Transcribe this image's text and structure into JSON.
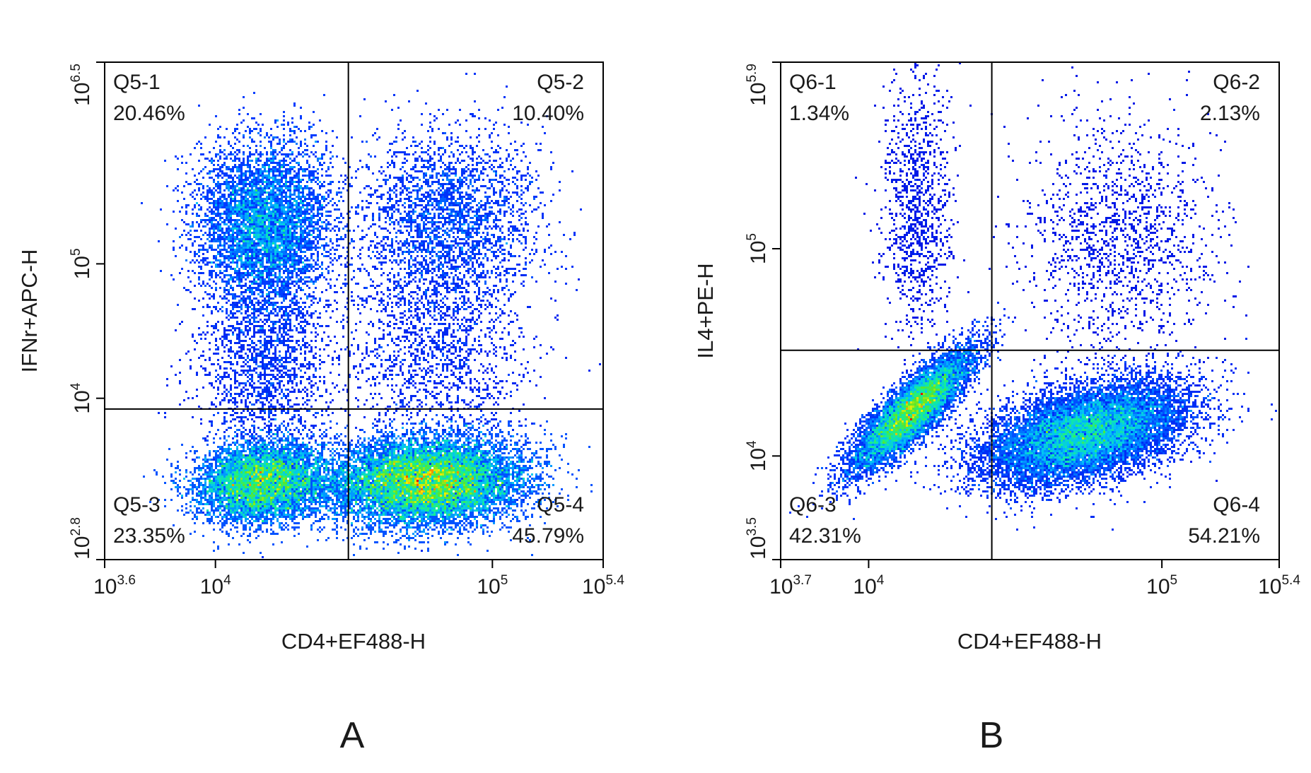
{
  "chart_data": [
    {
      "type": "scatter",
      "panel_label": "A",
      "xlabel": "CD4+EF488-H",
      "ylabel": "IFNr+APC-H",
      "xscale": "log",
      "yscale": "log",
      "xlim_exp": [
        3.6,
        5.4
      ],
      "ylim_exp": [
        2.8,
        6.5
      ],
      "x_ticks": [
        {
          "base": "10",
          "exp": "3.6",
          "value_exp": 3.6
        },
        {
          "base": "10",
          "exp": "4",
          "value_exp": 4.0
        },
        {
          "base": "10",
          "exp": "5",
          "value_exp": 5.0
        },
        {
          "base": "10",
          "exp": "5.4",
          "value_exp": 5.4
        }
      ],
      "y_ticks": [
        {
          "base": "10",
          "exp": "2.8",
          "value_exp": 2.8
        },
        {
          "base": "10",
          "exp": "4",
          "value_exp": 4.0
        },
        {
          "base": "10",
          "exp": "5",
          "value_exp": 5.0
        },
        {
          "base": "10",
          "exp": "6.5",
          "value_exp": 6.5
        }
      ],
      "gate_x_exp": 4.48,
      "gate_y_exp": 3.92,
      "quadrants": [
        {
          "id": "Q5-1",
          "percent": "20.46%",
          "position": "top-left"
        },
        {
          "id": "Q5-2",
          "percent": "10.40%",
          "position": "top-right"
        },
        {
          "id": "Q5-3",
          "percent": "23.35%",
          "position": "bottom-left"
        },
        {
          "id": "Q5-4",
          "percent": "45.79%",
          "position": "bottom-right"
        }
      ],
      "populations": [
        {
          "cx_exp": 4.18,
          "cy_exp": 5.3,
          "sx": 0.12,
          "sy": 0.3,
          "rho": 0.0,
          "n": 5500,
          "peak": 0.65
        },
        {
          "cx_exp": 4.84,
          "cy_exp": 5.35,
          "sx": 0.16,
          "sy": 0.32,
          "rho": 0.0,
          "n": 2600,
          "peak": 0.45
        },
        {
          "cx_exp": 4.17,
          "cy_exp": 3.38,
          "sx": 0.12,
          "sy": 0.15,
          "rho": 0.1,
          "n": 6000,
          "peak": 1.0
        },
        {
          "cx_exp": 4.76,
          "cy_exp": 3.38,
          "sx": 0.17,
          "sy": 0.16,
          "rho": 0.1,
          "n": 11000,
          "peak": 1.0
        },
        {
          "cx_exp": 4.18,
          "cy_exp": 4.3,
          "sx": 0.12,
          "sy": 0.4,
          "rho": 0.0,
          "n": 2000,
          "peak": 0.25
        },
        {
          "cx_exp": 4.8,
          "cy_exp": 4.4,
          "sx": 0.16,
          "sy": 0.45,
          "rho": 0.0,
          "n": 1800,
          "peak": 0.22
        }
      ]
    },
    {
      "type": "scatter",
      "panel_label": "B",
      "xlabel": "CD4+EF488-H",
      "ylabel": "IL4+PE-H",
      "xscale": "log",
      "yscale": "log",
      "xlim_exp": [
        3.7,
        5.4
      ],
      "ylim_exp": [
        3.5,
        5.9
      ],
      "x_ticks": [
        {
          "base": "10",
          "exp": "3.7",
          "value_exp": 3.7
        },
        {
          "base": "10",
          "exp": "4",
          "value_exp": 4.0
        },
        {
          "base": "10",
          "exp": "5",
          "value_exp": 5.0
        },
        {
          "base": "10",
          "exp": "5.4",
          "value_exp": 5.4
        }
      ],
      "y_ticks": [
        {
          "base": "10",
          "exp": "3.5",
          "value_exp": 3.5
        },
        {
          "base": "10",
          "exp": "4",
          "value_exp": 4.0
        },
        {
          "base": "10",
          "exp": "5",
          "value_exp": 5.0
        },
        {
          "base": "10",
          "exp": "5.9",
          "value_exp": 5.9
        }
      ],
      "gate_x_exp": 4.42,
      "gate_y_exp": 4.51,
      "quadrants": [
        {
          "id": "Q6-1",
          "percent": "1.34%",
          "position": "top-left"
        },
        {
          "id": "Q6-2",
          "percent": "2.13%",
          "position": "top-right"
        },
        {
          "id": "Q6-3",
          "percent": "42.31%",
          "position": "bottom-left"
        },
        {
          "id": "Q6-4",
          "percent": "54.21%",
          "position": "bottom-right"
        }
      ],
      "populations": [
        {
          "cx_exp": 4.15,
          "cy_exp": 4.22,
          "sx": 0.1,
          "sy": 0.14,
          "rho": 0.85,
          "n": 8500,
          "peak": 1.0
        },
        {
          "cx_exp": 4.74,
          "cy_exp": 4.11,
          "sx": 0.17,
          "sy": 0.12,
          "rho": 0.45,
          "n": 12500,
          "peak": 0.78
        },
        {
          "cx_exp": 4.17,
          "cy_exp": 5.2,
          "sx": 0.06,
          "sy": 0.3,
          "rho": 0.0,
          "n": 1000,
          "peak": 0.12
        },
        {
          "cx_exp": 4.85,
          "cy_exp": 5.05,
          "sx": 0.16,
          "sy": 0.3,
          "rho": 0.0,
          "n": 1400,
          "peak": 0.12
        }
      ]
    }
  ]
}
